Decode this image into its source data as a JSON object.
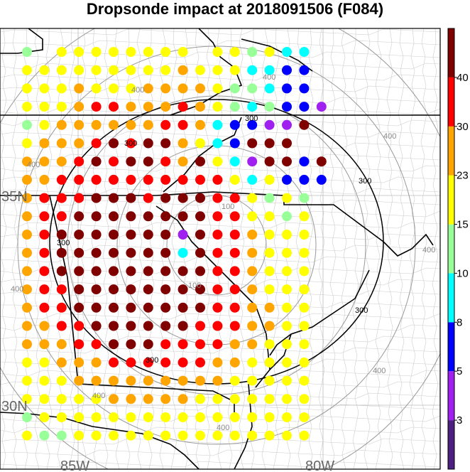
{
  "title": "Dropsonde impact at 2018091506 (F084)",
  "lat_labels": [
    "35N",
    "30N"
  ],
  "lon_labels": [
    "85W",
    "80W"
  ],
  "colorbar": {
    "labels": [
      "40",
      "30",
      "23",
      "15",
      "10",
      "8",
      "5",
      "3"
    ],
    "colors": [
      "#4b2080",
      "#a020f0",
      "#0000ff",
      "#00ffff",
      "#99ff99",
      "#ffff00",
      "#ffa500",
      "#ff0000",
      "#800000"
    ]
  },
  "contours": {
    "inner_label": "100",
    "middle_label": "300",
    "outer_label": "400"
  },
  "chart_data": {
    "type": "scatter",
    "description_categories": [
      "<3",
      "3-5",
      "5-8",
      "8-10",
      "10-15",
      "15-23",
      "23-30",
      "30-40",
      ">40"
    ],
    "levels": [
      3,
      5,
      8,
      10,
      15,
      23,
      30,
      40
    ],
    "grid_rows": [
      "L.YYYYYYYY.YYLYCC",
      "YYYYYYYYYOYYYCCBB",
      "YYYOYYYOOOOYLLCBB",
      "YYYORROOOROYLCLBBP",
      "LYOOOOOORROCBBPPD",
      "YOOORDRDDOYCBDDD",
      "OOORDRDDRODYCPDDBD",
      "OORRRRRRRRRRYCYBBB",
      "ORRRDDDRDDDRRYLYL",
      "ORRDDDDDDDDRRYYLY",
      "ORDDDDDDDPDRROYYY",
      "ORDDDDDDDCDRROYYY",
      "ORDDDDDDDDDRROYYY",
      "ORRDDDDDDDDRROYYY",
      "ORRDDDDDDDDRROOYY",
      "OORRDDDDDDRRROOYY",
      "OOORRDDDRRRROOYYY",
      "YYOOORRRRRROOYYYY",
      "YYYOOOOOOOOOYYYYY",
      "YYYYYOOOOOYYYYYYY",
      "LYYYYYYYYYYYYYYYY",
      "YLLYYYYYYYYYYYYYY"
    ]
  }
}
